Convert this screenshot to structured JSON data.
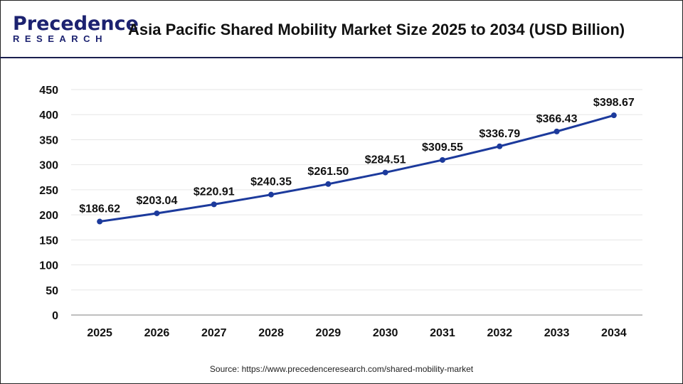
{
  "header": {
    "logo_text": "Precedence",
    "logo_subtext": "RESEARCH",
    "title": "Asia Pacific Shared Mobility Market Size 2025 to 2034 (USD Billion)"
  },
  "chart_data": {
    "type": "line",
    "title": "Asia Pacific Shared Mobility Market Size 2025 to 2034 (USD Billion)",
    "categories": [
      "2025",
      "2026",
      "2027",
      "2028",
      "2029",
      "2030",
      "2031",
      "2032",
      "2033",
      "2034"
    ],
    "values": [
      186.62,
      203.04,
      220.91,
      240.35,
      261.5,
      284.51,
      309.55,
      336.79,
      366.43,
      398.67
    ],
    "data_labels": [
      "$186.62",
      "$203.04",
      "$220.91",
      "$240.35",
      "$261.50",
      "$284.51",
      "$309.55",
      "$336.79",
      "$366.43",
      "$398.67"
    ],
    "ylim": [
      0,
      450
    ],
    "yticks": [
      "0",
      "50",
      "100",
      "150",
      "200",
      "250",
      "300",
      "350",
      "400",
      "450"
    ],
    "xlabel": "",
    "ylabel": "",
    "grid": true,
    "line_color": "#1c3a9c"
  },
  "source": "Source: https://www.precedenceresearch.com/shared-mobility-market"
}
